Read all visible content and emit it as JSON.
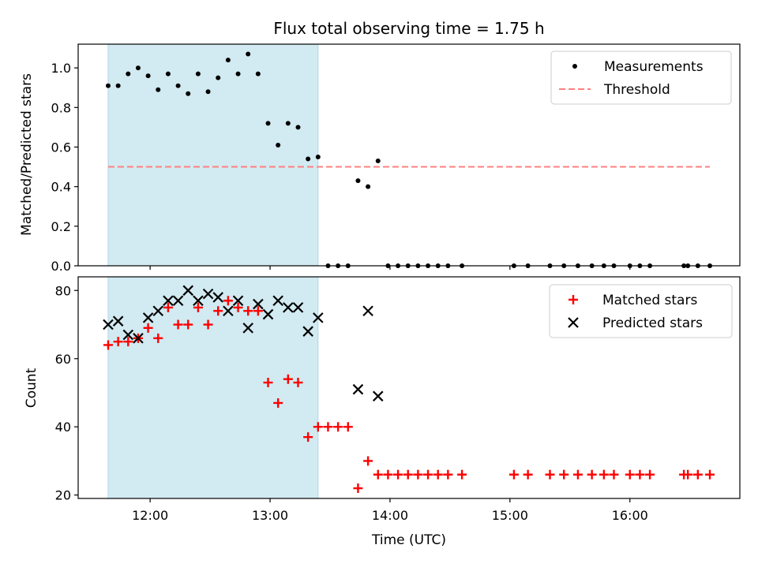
{
  "chart_data": [
    {
      "type": "scatter",
      "title": "Flux total observing time = 1.75 h",
      "xlabel": "",
      "ylabel": "Matched/Predicted stars",
      "ylim": [
        0,
        1.12
      ],
      "xlim": [
        "11:24",
        "16:55"
      ],
      "yticks": [
        0.0,
        0.2,
        0.4,
        0.6,
        0.8,
        1.0
      ],
      "ytick_labels": [
        "0.0",
        "0.2",
        "0.4",
        "0.6",
        "0.8",
        "1.0"
      ],
      "xticks": [
        "12:00",
        "13:00",
        "14:00",
        "15:00",
        "16:00"
      ],
      "grid": false,
      "legend_position": "upper-right",
      "shaded_span": {
        "start": "11:39",
        "end": "13:24",
        "color": "#add8e6"
      },
      "series": [
        {
          "name": "Measurements",
          "marker": "dot",
          "color": "#000000",
          "points": [
            [
              "11:39",
              0.91
            ],
            [
              "11:44",
              0.91
            ],
            [
              "11:49",
              0.97
            ],
            [
              "11:54",
              1.0
            ],
            [
              "11:59",
              0.96
            ],
            [
              "12:04",
              0.89
            ],
            [
              "12:09",
              0.97
            ],
            [
              "12:14",
              0.91
            ],
            [
              "12:19",
              0.87
            ],
            [
              "12:24",
              0.97
            ],
            [
              "12:29",
              0.88
            ],
            [
              "12:34",
              0.95
            ],
            [
              "12:39",
              1.04
            ],
            [
              "12:44",
              0.97
            ],
            [
              "12:49",
              1.07
            ],
            [
              "12:54",
              0.97
            ],
            [
              "12:59",
              0.72
            ],
            [
              "13:04",
              0.61
            ],
            [
              "13:09",
              0.72
            ],
            [
              "13:14",
              0.7
            ],
            [
              "13:19",
              0.54
            ],
            [
              "13:24",
              0.55
            ],
            [
              "13:29",
              0.0
            ],
            [
              "13:34",
              0.0
            ],
            [
              "13:39",
              0.0
            ],
            [
              "13:44",
              0.43
            ],
            [
              "13:49",
              0.4
            ],
            [
              "13:54",
              0.53
            ],
            [
              "13:59",
              0.0
            ],
            [
              "14:04",
              0.0
            ],
            [
              "14:09",
              0.0
            ],
            [
              "14:14",
              0.0
            ],
            [
              "14:19",
              0.0
            ],
            [
              "14:24",
              0.0
            ],
            [
              "14:29",
              0.0
            ],
            [
              "14:36",
              0.0
            ],
            [
              "15:02",
              0.0
            ],
            [
              "15:09",
              0.0
            ],
            [
              "15:20",
              0.0
            ],
            [
              "15:27",
              0.0
            ],
            [
              "15:34",
              0.0
            ],
            [
              "15:41",
              0.0
            ],
            [
              "15:47",
              0.0
            ],
            [
              "15:52",
              0.0
            ],
            [
              "16:00",
              0.0
            ],
            [
              "16:05",
              0.0
            ],
            [
              "16:10",
              0.0
            ],
            [
              "16:27",
              0.0
            ],
            [
              "16:29",
              0.0
            ],
            [
              "16:34",
              0.0
            ],
            [
              "16:40",
              0.0
            ]
          ]
        },
        {
          "name": "Threshold",
          "marker": "dashed-line",
          "color": "#ff8080",
          "points": [
            [
              "11:39",
              0.5
            ],
            [
              "16:40",
              0.5
            ]
          ]
        }
      ]
    },
    {
      "type": "scatter",
      "title": "",
      "xlabel": "Time (UTC)",
      "ylabel": "Count",
      "ylim": [
        19,
        84
      ],
      "xlim": [
        "11:24",
        "16:55"
      ],
      "yticks": [
        20,
        40,
        60,
        80
      ],
      "ytick_labels": [
        "20",
        "40",
        "60",
        "80"
      ],
      "xticks": [
        "12:00",
        "13:00",
        "14:00",
        "15:00",
        "16:00"
      ],
      "xtick_labels": [
        "12:00",
        "13:00",
        "14:00",
        "15:00",
        "16:00"
      ],
      "grid": false,
      "legend_position": "upper-right",
      "shaded_span": {
        "start": "11:39",
        "end": "13:24",
        "color": "#add8e6"
      },
      "series": [
        {
          "name": "Matched stars",
          "marker": "plus",
          "color": "#ff0000",
          "points": [
            [
              "11:39",
              64
            ],
            [
              "11:44",
              65
            ],
            [
              "11:49",
              65
            ],
            [
              "11:54",
              66
            ],
            [
              "11:59",
              69
            ],
            [
              "12:04",
              66
            ],
            [
              "12:09",
              75
            ],
            [
              "12:14",
              70
            ],
            [
              "12:19",
              70
            ],
            [
              "12:24",
              75
            ],
            [
              "12:29",
              70
            ],
            [
              "12:34",
              74
            ],
            [
              "12:39",
              77
            ],
            [
              "12:44",
              75
            ],
            [
              "12:49",
              74
            ],
            [
              "12:54",
              74
            ],
            [
              "12:59",
              53
            ],
            [
              "13:04",
              47
            ],
            [
              "13:09",
              54
            ],
            [
              "13:14",
              53
            ],
            [
              "13:19",
              37
            ],
            [
              "13:24",
              40
            ],
            [
              "13:29",
              40
            ],
            [
              "13:34",
              40
            ],
            [
              "13:39",
              40
            ],
            [
              "13:44",
              22
            ],
            [
              "13:49",
              30
            ],
            [
              "13:54",
              26
            ],
            [
              "13:59",
              26
            ],
            [
              "14:04",
              26
            ],
            [
              "14:09",
              26
            ],
            [
              "14:14",
              26
            ],
            [
              "14:19",
              26
            ],
            [
              "14:24",
              26
            ],
            [
              "14:29",
              26
            ],
            [
              "14:36",
              26
            ],
            [
              "15:02",
              26
            ],
            [
              "15:09",
              26
            ],
            [
              "15:20",
              26
            ],
            [
              "15:27",
              26
            ],
            [
              "15:34",
              26
            ],
            [
              "15:41",
              26
            ],
            [
              "15:47",
              26
            ],
            [
              "15:52",
              26
            ],
            [
              "16:00",
              26
            ],
            [
              "16:05",
              26
            ],
            [
              "16:10",
              26
            ],
            [
              "16:27",
              26
            ],
            [
              "16:29",
              26
            ],
            [
              "16:34",
              26
            ],
            [
              "16:40",
              26
            ]
          ]
        },
        {
          "name": "Predicted stars",
          "marker": "x",
          "color": "#000000",
          "points": [
            [
              "11:39",
              70
            ],
            [
              "11:44",
              71
            ],
            [
              "11:49",
              67
            ],
            [
              "11:54",
              66
            ],
            [
              "11:59",
              72
            ],
            [
              "12:04",
              74
            ],
            [
              "12:09",
              77
            ],
            [
              "12:14",
              77
            ],
            [
              "12:19",
              80
            ],
            [
              "12:24",
              77
            ],
            [
              "12:29",
              79
            ],
            [
              "12:34",
              78
            ],
            [
              "12:39",
              74
            ],
            [
              "12:44",
              77
            ],
            [
              "12:49",
              69
            ],
            [
              "12:54",
              76
            ],
            [
              "12:59",
              73
            ],
            [
              "13:04",
              77
            ],
            [
              "13:09",
              75
            ],
            [
              "13:14",
              75
            ],
            [
              "13:19",
              68
            ],
            [
              "13:24",
              72
            ],
            [
              "13:44",
              51
            ],
            [
              "13:49",
              74
            ],
            [
              "13:54",
              49
            ]
          ]
        }
      ]
    }
  ]
}
